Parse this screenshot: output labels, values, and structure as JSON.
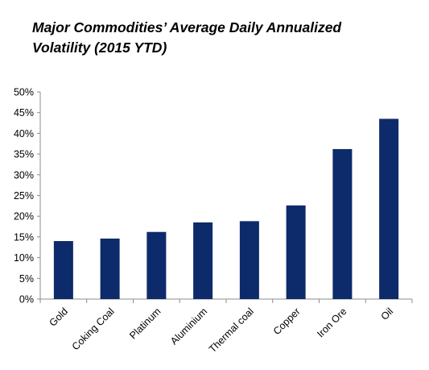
{
  "chart_data": {
    "type": "bar",
    "title_line1": "Major Commodities’ Average Daily Annualized",
    "title_line2": "Volatility (2015 YTD)",
    "categories": [
      "Gold",
      "Coking Coal",
      "Platinum",
      "Aluminium",
      "Thermal coal",
      "Copper",
      "Iron Ore",
      "Oil"
    ],
    "values": [
      14.0,
      14.6,
      16.2,
      18.5,
      18.8,
      22.6,
      36.2,
      43.5
    ],
    "ylim": [
      0,
      50
    ],
    "yticks": [
      "0%",
      "5%",
      "10%",
      "15%",
      "20%",
      "25%",
      "30%",
      "35%",
      "40%",
      "45%",
      "50%"
    ],
    "grid": false,
    "legend": "none",
    "bar_color": "#0d2a6b"
  }
}
